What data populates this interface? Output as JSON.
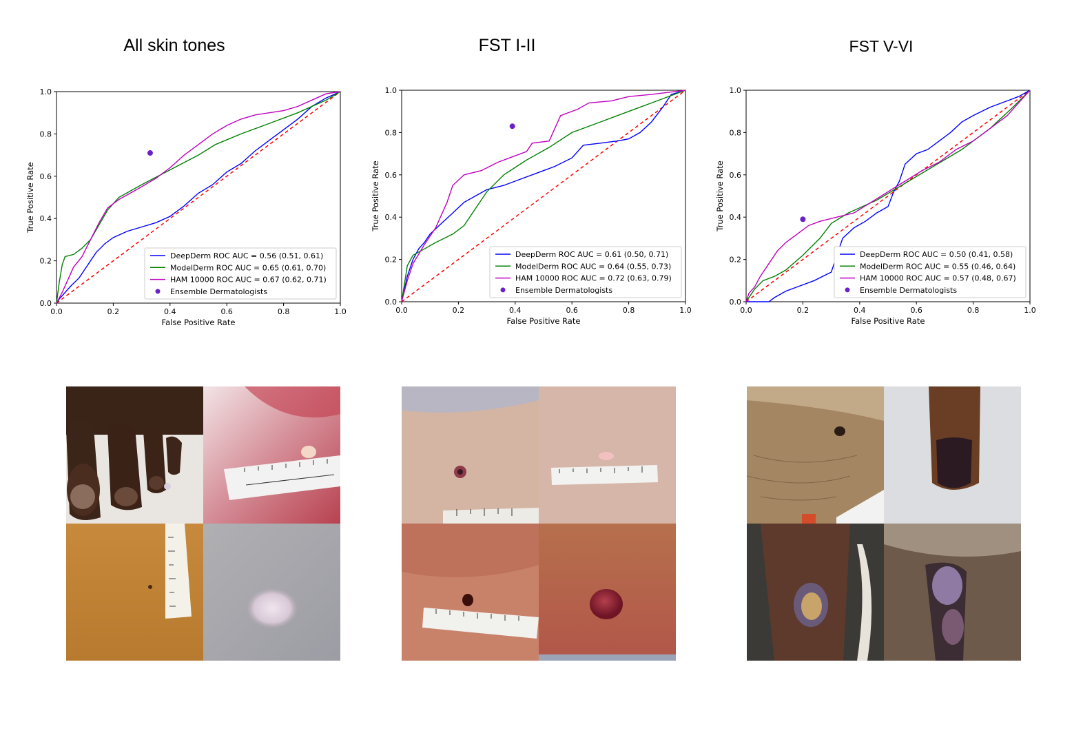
{
  "panels": [
    {
      "title": "All skin tones"
    },
    {
      "title": "FST I-II"
    },
    {
      "title": "FST V-VI"
    }
  ],
  "colors": {
    "deepderm": "#0000ff",
    "modelderm": "#008000",
    "ham": "#bf00bf",
    "ensemble": "#6a22c6",
    "chance": "#ff0000"
  },
  "chart_data": [
    {
      "type": "line",
      "title": "All skin tones",
      "xlabel": "False Positive Rate",
      "ylabel": "True Positive Rate",
      "xlim": [
        0,
        1
      ],
      "ylim": [
        0,
        1
      ],
      "xticks": [
        "0.0",
        "0.2",
        "0.4",
        "0.6",
        "0.8",
        "1.0"
      ],
      "yticks": [
        "0.0",
        "0.2",
        "0.4",
        "0.6",
        "0.8",
        "1.0"
      ],
      "legend_position": "lower-right",
      "series": [
        {
          "name": "DeepDerm ROC AUC = 0.56 (0.51, 0.61)",
          "color": "#0000ff",
          "points": [
            [
              0,
              0
            ],
            [
              0.01,
              0.02
            ],
            [
              0.03,
              0.05
            ],
            [
              0.05,
              0.08
            ],
            [
              0.08,
              0.12
            ],
            [
              0.1,
              0.16
            ],
            [
              0.12,
              0.2
            ],
            [
              0.14,
              0.24
            ],
            [
              0.17,
              0.28
            ],
            [
              0.2,
              0.31
            ],
            [
              0.25,
              0.34
            ],
            [
              0.3,
              0.36
            ],
            [
              0.35,
              0.38
            ],
            [
              0.4,
              0.41
            ],
            [
              0.45,
              0.46
            ],
            [
              0.5,
              0.52
            ],
            [
              0.55,
              0.56
            ],
            [
              0.6,
              0.62
            ],
            [
              0.65,
              0.66
            ],
            [
              0.7,
              0.72
            ],
            [
              0.75,
              0.77
            ],
            [
              0.8,
              0.82
            ],
            [
              0.85,
              0.87
            ],
            [
              0.9,
              0.93
            ],
            [
              0.95,
              0.97
            ],
            [
              1,
              1
            ]
          ]
        },
        {
          "name": "ModelDerm ROC AUC = 0.65 (0.61, 0.70)",
          "color": "#008000",
          "points": [
            [
              0,
              0
            ],
            [
              0.01,
              0.1
            ],
            [
              0.02,
              0.18
            ],
            [
              0.03,
              0.22
            ],
            [
              0.06,
              0.23
            ],
            [
              0.09,
              0.26
            ],
            [
              0.12,
              0.3
            ],
            [
              0.15,
              0.37
            ],
            [
              0.18,
              0.44
            ],
            [
              0.22,
              0.5
            ],
            [
              0.3,
              0.56
            ],
            [
              0.4,
              0.63
            ],
            [
              0.5,
              0.7
            ],
            [
              0.56,
              0.75
            ],
            [
              0.65,
              0.8
            ],
            [
              0.75,
              0.85
            ],
            [
              0.85,
              0.9
            ],
            [
              0.95,
              0.96
            ],
            [
              1,
              1
            ]
          ]
        },
        {
          "name": "HAM 10000 ROC AUC = 0.67 (0.62, 0.71)",
          "color": "#bf00bf",
          "points": [
            [
              0,
              0
            ],
            [
              0.02,
              0.05
            ],
            [
              0.04,
              0.11
            ],
            [
              0.06,
              0.17
            ],
            [
              0.09,
              0.22
            ],
            [
              0.12,
              0.3
            ],
            [
              0.15,
              0.38
            ],
            [
              0.18,
              0.45
            ],
            [
              0.22,
              0.49
            ],
            [
              0.26,
              0.52
            ],
            [
              0.3,
              0.55
            ],
            [
              0.35,
              0.59
            ],
            [
              0.4,
              0.64
            ],
            [
              0.45,
              0.7
            ],
            [
              0.5,
              0.75
            ],
            [
              0.55,
              0.8
            ],
            [
              0.6,
              0.84
            ],
            [
              0.65,
              0.87
            ],
            [
              0.7,
              0.89
            ],
            [
              0.75,
              0.9
            ],
            [
              0.8,
              0.91
            ],
            [
              0.85,
              0.93
            ],
            [
              0.9,
              0.96
            ],
            [
              0.95,
              0.99
            ],
            [
              1,
              1
            ]
          ]
        }
      ],
      "ensemble_point": {
        "name": "Ensemble Dermatologists",
        "x": 0.33,
        "y": 0.71
      }
    },
    {
      "type": "line",
      "title": "FST I-II",
      "xlabel": "False Positive Rate",
      "ylabel": "True Positive Rate",
      "xlim": [
        0,
        1
      ],
      "ylim": [
        0,
        1
      ],
      "xticks": [
        "0.0",
        "0.2",
        "0.4",
        "0.6",
        "0.8",
        "1.0"
      ],
      "yticks": [
        "0.0",
        "0.2",
        "0.4",
        "0.6",
        "0.8",
        "1.0"
      ],
      "legend_position": "lower-right",
      "series": [
        {
          "name": "DeepDerm ROC AUC = 0.61 (0.50, 0.71)",
          "color": "#0000ff",
          "points": [
            [
              0,
              0
            ],
            [
              0.02,
              0.12
            ],
            [
              0.04,
              0.2
            ],
            [
              0.06,
              0.25
            ],
            [
              0.08,
              0.28
            ],
            [
              0.1,
              0.32
            ],
            [
              0.14,
              0.37
            ],
            [
              0.18,
              0.42
            ],
            [
              0.22,
              0.47
            ],
            [
              0.26,
              0.5
            ],
            [
              0.3,
              0.53
            ],
            [
              0.36,
              0.55
            ],
            [
              0.42,
              0.58
            ],
            [
              0.48,
              0.61
            ],
            [
              0.54,
              0.64
            ],
            [
              0.6,
              0.68
            ],
            [
              0.64,
              0.74
            ],
            [
              0.7,
              0.75
            ],
            [
              0.76,
              0.76
            ],
            [
              0.8,
              0.77
            ],
            [
              0.84,
              0.8
            ],
            [
              0.88,
              0.85
            ],
            [
              0.92,
              0.92
            ],
            [
              0.95,
              0.98
            ],
            [
              1,
              1
            ]
          ]
        },
        {
          "name": "ModelDerm ROC AUC = 0.64 (0.55, 0.73)",
          "color": "#008000",
          "points": [
            [
              0,
              0
            ],
            [
              0.02,
              0.17
            ],
            [
              0.04,
              0.22
            ],
            [
              0.08,
              0.25
            ],
            [
              0.12,
              0.28
            ],
            [
              0.18,
              0.32
            ],
            [
              0.22,
              0.36
            ],
            [
              0.26,
              0.44
            ],
            [
              0.3,
              0.52
            ],
            [
              0.36,
              0.6
            ],
            [
              0.44,
              0.67
            ],
            [
              0.52,
              0.73
            ],
            [
              0.6,
              0.8
            ],
            [
              0.7,
              0.85
            ],
            [
              0.8,
              0.9
            ],
            [
              0.9,
              0.95
            ],
            [
              1,
              1
            ]
          ]
        },
        {
          "name": "HAM 10000 ROC AUC = 0.72 (0.63, 0.79)",
          "color": "#bf00bf",
          "points": [
            [
              0,
              0
            ],
            [
              0.02,
              0.1
            ],
            [
              0.04,
              0.18
            ],
            [
              0.08,
              0.27
            ],
            [
              0.12,
              0.35
            ],
            [
              0.16,
              0.47
            ],
            [
              0.18,
              0.55
            ],
            [
              0.22,
              0.6
            ],
            [
              0.28,
              0.62
            ],
            [
              0.34,
              0.66
            ],
            [
              0.38,
              0.68
            ],
            [
              0.44,
              0.71
            ],
            [
              0.46,
              0.75
            ],
            [
              0.52,
              0.76
            ],
            [
              0.56,
              0.88
            ],
            [
              0.62,
              0.91
            ],
            [
              0.66,
              0.94
            ],
            [
              0.74,
              0.95
            ],
            [
              0.8,
              0.97
            ],
            [
              0.88,
              0.98
            ],
            [
              0.94,
              0.99
            ],
            [
              1,
              1
            ]
          ]
        }
      ],
      "ensemble_point": {
        "name": "Ensemble Dermatologists",
        "x": 0.39,
        "y": 0.83
      }
    },
    {
      "type": "line",
      "title": "FST V-VI",
      "xlabel": "False Positive Rate",
      "ylabel": "True Positive Rate",
      "xlim": [
        0,
        1
      ],
      "ylim": [
        0,
        1
      ],
      "xticks": [
        "0.0",
        "0.2",
        "0.4",
        "0.6",
        "0.8",
        "1.0"
      ],
      "yticks": [
        "0.0",
        "0.2",
        "0.4",
        "0.6",
        "0.8",
        "1.0"
      ],
      "legend_position": "lower-right",
      "series": [
        {
          "name": "DeepDerm ROC AUC = 0.50 (0.41, 0.58)",
          "color": "#0000ff",
          "points": [
            [
              0,
              0
            ],
            [
              0.08,
              0
            ],
            [
              0.1,
              0.02
            ],
            [
              0.14,
              0.05
            ],
            [
              0.18,
              0.07
            ],
            [
              0.24,
              0.1
            ],
            [
              0.3,
              0.14
            ],
            [
              0.32,
              0.22
            ],
            [
              0.34,
              0.3
            ],
            [
              0.38,
              0.35
            ],
            [
              0.42,
              0.38
            ],
            [
              0.46,
              0.42
            ],
            [
              0.5,
              0.45
            ],
            [
              0.52,
              0.52
            ],
            [
              0.54,
              0.57
            ],
            [
              0.56,
              0.65
            ],
            [
              0.6,
              0.7
            ],
            [
              0.64,
              0.72
            ],
            [
              0.68,
              0.76
            ],
            [
              0.72,
              0.8
            ],
            [
              0.76,
              0.85
            ],
            [
              0.8,
              0.88
            ],
            [
              0.86,
              0.92
            ],
            [
              0.92,
              0.95
            ],
            [
              0.96,
              0.97
            ],
            [
              1,
              1
            ]
          ]
        },
        {
          "name": "ModelDerm ROC AUC = 0.55 (0.46, 0.64)",
          "color": "#008000",
          "points": [
            [
              0,
              0
            ],
            [
              0.03,
              0.06
            ],
            [
              0.06,
              0.1
            ],
            [
              0.1,
              0.12
            ],
            [
              0.14,
              0.15
            ],
            [
              0.2,
              0.22
            ],
            [
              0.26,
              0.3
            ],
            [
              0.3,
              0.37
            ],
            [
              0.36,
              0.42
            ],
            [
              0.46,
              0.48
            ],
            [
              0.56,
              0.56
            ],
            [
              0.66,
              0.64
            ],
            [
              0.76,
              0.72
            ],
            [
              0.86,
              0.82
            ],
            [
              0.94,
              0.92
            ],
            [
              1,
              1
            ]
          ]
        },
        {
          "name": "HAM 10000 ROC AUC = 0.57 (0.48, 0.67)",
          "color": "#bf00bf",
          "points": [
            [
              0,
              0
            ],
            [
              0.01,
              0.04
            ],
            [
              0.03,
              0.07
            ],
            [
              0.05,
              0.12
            ],
            [
              0.08,
              0.18
            ],
            [
              0.11,
              0.24
            ],
            [
              0.14,
              0.28
            ],
            [
              0.18,
              0.32
            ],
            [
              0.22,
              0.36
            ],
            [
              0.26,
              0.38
            ],
            [
              0.32,
              0.4
            ],
            [
              0.38,
              0.42
            ],
            [
              0.44,
              0.47
            ],
            [
              0.5,
              0.52
            ],
            [
              0.56,
              0.57
            ],
            [
              0.62,
              0.62
            ],
            [
              0.68,
              0.66
            ],
            [
              0.74,
              0.72
            ],
            [
              0.8,
              0.76
            ],
            [
              0.86,
              0.82
            ],
            [
              0.92,
              0.88
            ],
            [
              0.96,
              0.94
            ],
            [
              1,
              1
            ]
          ]
        }
      ],
      "ensemble_point": {
        "name": "Ensemble Dermatologists",
        "x": 0.2,
        "y": 0.39
      }
    }
  ],
  "photo_grids": [
    {
      "photos": [
        "toes-dark-skin-photo",
        "pink-skin-nodule-ruler-photo",
        "tan-skin-lesion-ruler-photo",
        "white-patch-photo"
      ]
    },
    {
      "photos": [
        "small-pigmented-papule-photo",
        "pink-papule-ruler-photo",
        "dark-papule-ruler-photo",
        "red-nodule-photo"
      ]
    },
    {
      "photos": [
        "sole-pigmented-lesion-photo",
        "dark-fingernail-photo",
        "leg-ulcer-photo",
        "ulcerated-plaque-photo"
      ]
    }
  ]
}
